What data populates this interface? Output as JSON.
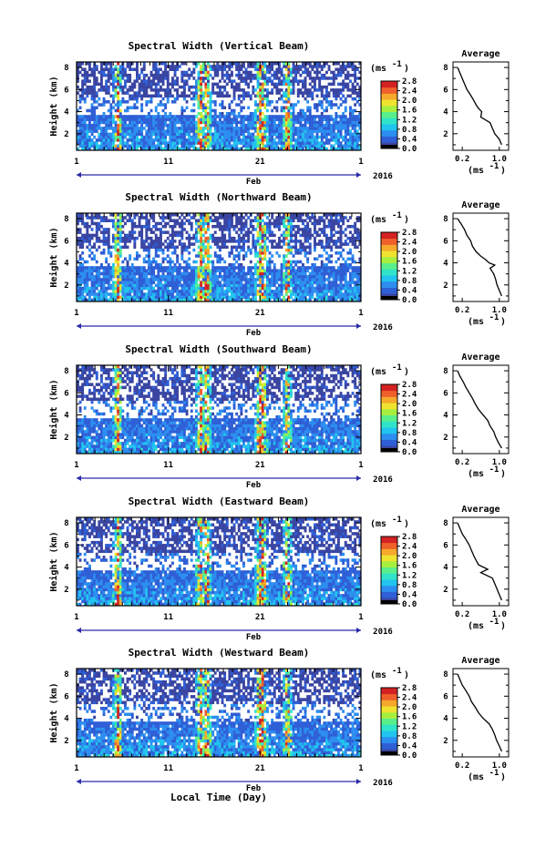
{
  "figure": {
    "xlabel": "Local Time (Day)",
    "x_ticklabels": [
      "1",
      "11",
      "21",
      "1"
    ],
    "month_label": "Feb",
    "year_label": "2016",
    "ylabel": "Height (km)",
    "y_ticklabels": [
      "2",
      "4",
      "6",
      "8"
    ],
    "colorbar_unit": "(ms",
    "colorbar_unit_exp": "-1",
    "colorbar_unit_close": ")",
    "avg_title": "Average",
    "avg_x_ticklabels": [
      "0.2",
      "1.0"
    ],
    "avg_xunit": "(ms",
    "avg_xunit_exp": "-1",
    "avg_xunit_close": ")"
  },
  "colormap": [
    "#3a45a2",
    "#2f5fd6",
    "#2c8ef0",
    "#21c4ee",
    "#30e3c9",
    "#58ef8c",
    "#a7ef3f",
    "#efe32f",
    "#f6a92b",
    "#f0602a",
    "#d42222"
  ],
  "chart_data": [
    {
      "type": "heatmap",
      "title": "Spectral Width (Vertical Beam)",
      "xlim": [
        1,
        32
      ],
      "ylim": [
        0.5,
        8.5
      ],
      "zlim": [
        0.0,
        2.8
      ],
      "colorbar_ticks": [
        "0.0",
        "0.4",
        "0.8",
        "1.2",
        "1.6",
        "2.0",
        "2.4",
        "2.8"
      ],
      "average_profile": {
        "title": "Average",
        "xlim": [
          0.0,
          1.2
        ],
        "height": [
          1,
          1.5,
          2,
          2.5,
          3,
          3.5,
          4,
          4.3,
          4.6,
          5,
          5.5,
          6,
          6.5,
          7,
          7.5,
          8
        ],
        "value": [
          1.05,
          1.0,
          0.9,
          0.85,
          0.8,
          0.6,
          0.62,
          0.55,
          0.5,
          0.45,
          0.38,
          0.3,
          0.25,
          0.2,
          0.15,
          0.1
        ]
      }
    },
    {
      "type": "heatmap",
      "title": "Spectral Width (Northward Beam)",
      "xlim": [
        1,
        32
      ],
      "ylim": [
        0.5,
        8.5
      ],
      "zlim": [
        0.0,
        2.8
      ],
      "colorbar_ticks": [
        "0.0",
        "0.4",
        "0.8",
        "1.2",
        "1.6",
        "2.0",
        "2.4",
        "2.8"
      ],
      "average_profile": {
        "title": "Average",
        "xlim": [
          0.0,
          1.2
        ],
        "height": [
          1,
          1.5,
          2,
          2.5,
          3,
          3.5,
          3.8,
          4,
          4.3,
          4.6,
          5,
          5.5,
          6,
          6.5,
          7,
          7.5,
          8
        ],
        "value": [
          1.05,
          1.0,
          0.95,
          0.92,
          0.88,
          0.8,
          0.9,
          0.78,
          0.7,
          0.6,
          0.5,
          0.42,
          0.38,
          0.3,
          0.25,
          0.18,
          0.1
        ]
      }
    },
    {
      "type": "heatmap",
      "title": "Spectral Width (Southward Beam)",
      "xlim": [
        1,
        32
      ],
      "ylim": [
        0.5,
        8.5
      ],
      "zlim": [
        0.0,
        2.8
      ],
      "colorbar_ticks": [
        "0.0",
        "0.4",
        "0.8",
        "1.2",
        "1.6",
        "2.0",
        "2.4",
        "2.8"
      ],
      "average_profile": {
        "title": "Average",
        "xlim": [
          0.0,
          1.2
        ],
        "height": [
          1,
          1.5,
          2,
          2.5,
          3,
          3.5,
          4,
          4.5,
          5,
          5.5,
          6,
          6.5,
          7,
          7.5,
          8
        ],
        "value": [
          1.05,
          0.98,
          0.92,
          0.88,
          0.8,
          0.75,
          0.65,
          0.55,
          0.48,
          0.42,
          0.35,
          0.28,
          0.22,
          0.15,
          0.1
        ]
      }
    },
    {
      "type": "heatmap",
      "title": "Spectral Width (Eastward Beam)",
      "xlim": [
        1,
        32
      ],
      "ylim": [
        0.5,
        8.5
      ],
      "zlim": [
        0.0,
        2.8
      ],
      "colorbar_ticks": [
        "0.0",
        "0.4",
        "0.8",
        "1.2",
        "1.6",
        "2.0",
        "2.4",
        "2.8"
      ],
      "average_profile": {
        "title": "Average",
        "xlim": [
          0.0,
          1.2
        ],
        "height": [
          1,
          1.5,
          2,
          2.5,
          3,
          3.5,
          3.8,
          4.2,
          4.6,
          5,
          5.5,
          6,
          6.5,
          7,
          7.5,
          8
        ],
        "value": [
          1.05,
          1.0,
          0.95,
          0.9,
          0.85,
          0.6,
          0.75,
          0.55,
          0.5,
          0.45,
          0.4,
          0.35,
          0.28,
          0.2,
          0.15,
          0.1
        ]
      }
    },
    {
      "type": "heatmap",
      "title": "Spectral Width (Westward Beam)",
      "xlim": [
        1,
        32
      ],
      "ylim": [
        0.5,
        8.5
      ],
      "zlim": [
        0.0,
        2.8
      ],
      "colorbar_ticks": [
        "0.0",
        "0.4",
        "0.8",
        "1.2",
        "1.6",
        "2.0",
        "2.4",
        "2.8"
      ],
      "average_profile": {
        "title": "Average",
        "xlim": [
          0.0,
          1.2
        ],
        "height": [
          1,
          1.5,
          2,
          2.5,
          3,
          3.5,
          4,
          4.5,
          5,
          5.5,
          6,
          6.5,
          7,
          7.5,
          8
        ],
        "value": [
          1.05,
          1.0,
          0.94,
          0.9,
          0.85,
          0.78,
          0.65,
          0.55,
          0.48,
          0.4,
          0.35,
          0.28,
          0.2,
          0.15,
          0.1
        ]
      }
    }
  ]
}
